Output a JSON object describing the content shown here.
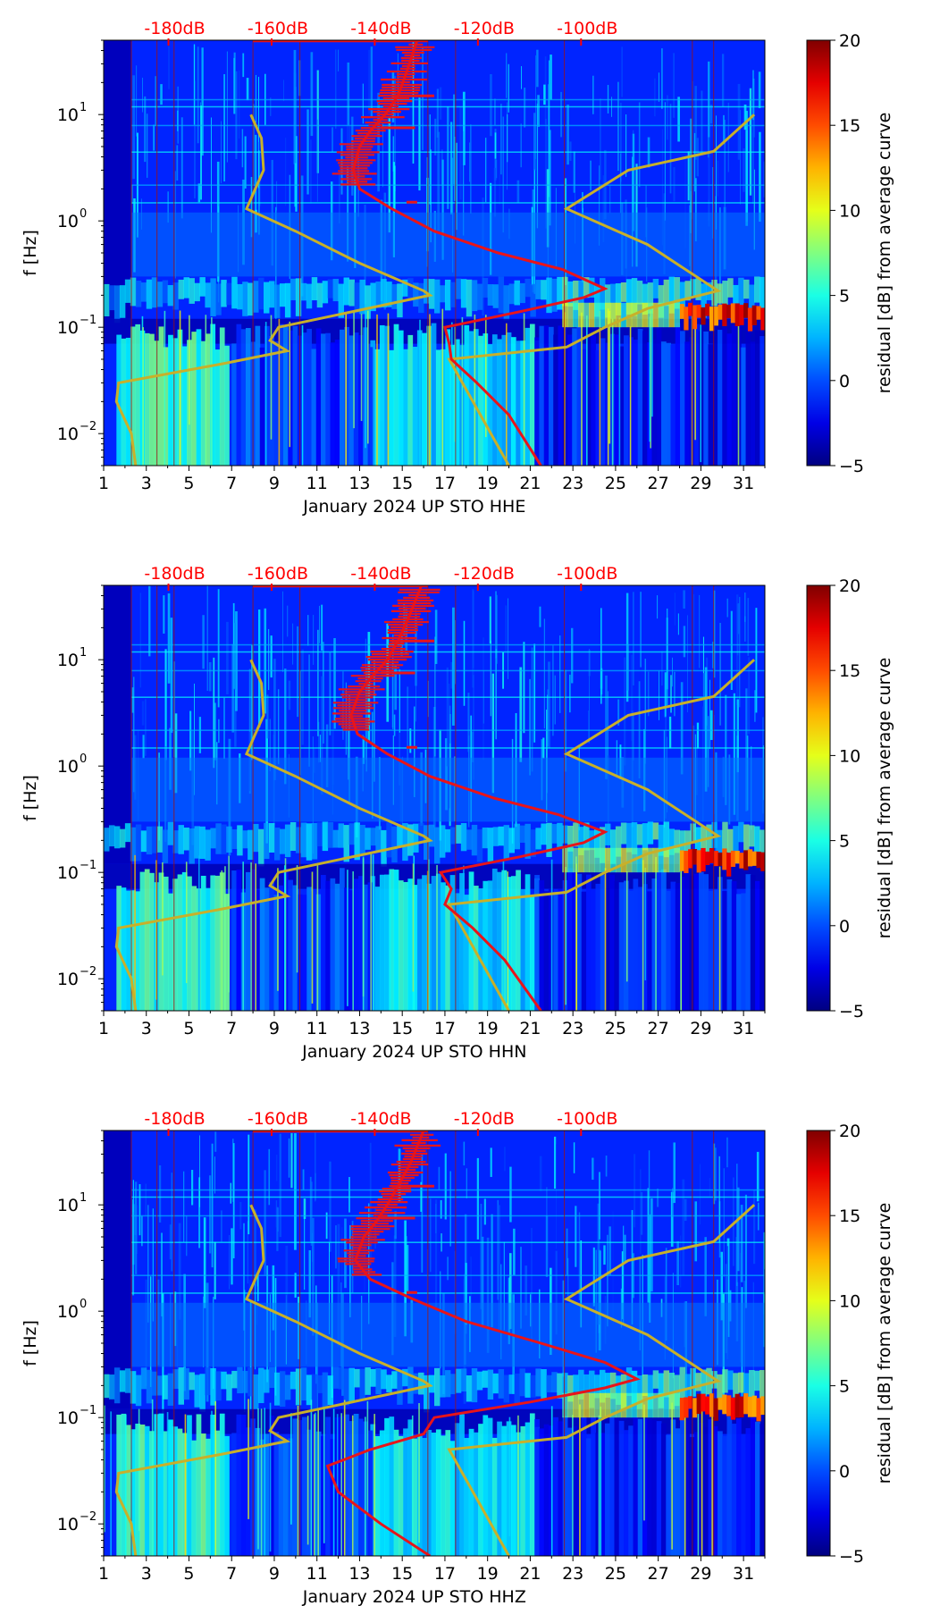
{
  "colors": {
    "db_label": "#ff0000",
    "median_curve": "#e8141a",
    "noise_model": "#c8b02a",
    "reference_line": "#a01010",
    "background_low": "#00008f",
    "colormap": "jet"
  },
  "chart_data": [
    {
      "type": "heatmap",
      "channel": "HHE",
      "xlabel": "January 2024 UP STO  HHE",
      "ylabel": "f [Hz]",
      "x_ticks": [
        "1",
        "3",
        "5",
        "7",
        "9",
        "11",
        "13",
        "15",
        "17",
        "19",
        "21",
        "23",
        "25",
        "27",
        "29",
        "31"
      ],
      "y_ticks": [
        {
          "base": "10",
          "exp": "1",
          "value": 10
        },
        {
          "base": "10",
          "exp": "0",
          "value": 1
        },
        {
          "base": "10",
          "exp": "−1",
          "value": 0.1
        },
        {
          "base": "10",
          "exp": "−2",
          "value": 0.01
        }
      ],
      "xlim": [
        1,
        32
      ],
      "ylim_hz": [
        0.005,
        50
      ],
      "db_axis_labels": [
        "-180dB",
        "-160dB",
        "-140dB",
        "-120dB",
        "-100dB"
      ],
      "db_axis_values": [
        -180,
        -160,
        -140,
        -120,
        -100
      ],
      "colorbar": {
        "label": "residual [dB] from average curve",
        "ticks": [
          "20",
          "15",
          "10",
          "5",
          "0",
          "−5"
        ],
        "vmin": -5,
        "vmax": 20
      },
      "reference_days": [
        2.3,
        3.5,
        4.3,
        8.0,
        10.2,
        16.2,
        17.5,
        22.6,
        28.6,
        29.6
      ],
      "noise_model_high": [
        [
          2.5,
          0.005
        ],
        [
          2.3,
          0.01
        ],
        [
          1.6,
          0.02
        ],
        [
          1.7,
          0.03
        ],
        [
          6.5,
          0.045
        ],
        [
          9.6,
          0.06
        ],
        [
          8.8,
          0.075
        ],
        [
          9.2,
          0.1
        ],
        [
          16.3,
          0.2
        ],
        [
          16.0,
          0.22
        ],
        [
          13.0,
          0.4
        ],
        [
          10.0,
          0.8
        ],
        [
          7.7,
          1.3
        ],
        [
          8.5,
          3.0
        ],
        [
          8.4,
          6.0
        ],
        [
          7.9,
          10
        ]
      ],
      "noise_model_low": [
        [
          20.0,
          0.005
        ],
        [
          17.2,
          0.05
        ],
        [
          22.7,
          0.065
        ],
        [
          24.5,
          0.1
        ],
        [
          26.5,
          0.15
        ],
        [
          29.8,
          0.22
        ],
        [
          26.5,
          0.6
        ],
        [
          22.7,
          1.3
        ],
        [
          25.6,
          3.0
        ],
        [
          29.6,
          4.5
        ],
        [
          31.5,
          10
        ]
      ],
      "median_curve": [
        [
          21.5,
          0.005
        ],
        [
          20.0,
          0.015
        ],
        [
          18.5,
          0.03
        ],
        [
          17.3,
          0.05
        ],
        [
          17.2,
          0.07
        ],
        [
          17.0,
          0.1
        ],
        [
          20.5,
          0.14
        ],
        [
          23.5,
          0.19
        ],
        [
          24.5,
          0.23
        ],
        [
          22.5,
          0.35
        ],
        [
          19.5,
          0.5
        ],
        [
          16.5,
          0.8
        ],
        [
          14.5,
          1.3
        ],
        [
          13.0,
          2.0
        ],
        [
          12.7,
          3.0
        ],
        [
          13.0,
          5.0
        ],
        [
          13.5,
          7.0
        ],
        [
          14.2,
          10.0
        ],
        [
          14.8,
          15.0
        ],
        [
          15.2,
          25.0
        ],
        [
          15.7,
          50.0
        ]
      ],
      "median_curve_days": {
        "min": 12.6,
        "max": 15.9
      },
      "features": {
        "microseism_band_hz": [
          0.12,
          0.3
        ],
        "storm_event_days": [
          28,
          32
        ],
        "storm_event_hz": [
          0.1,
          0.17
        ],
        "quiet_band_hz": [
          0.07,
          0.12
        ]
      }
    },
    {
      "type": "heatmap",
      "channel": "HHN",
      "xlabel": "January 2024 UP STO  HHN",
      "ylabel": "f [Hz]",
      "x_ticks": [
        "1",
        "3",
        "5",
        "7",
        "9",
        "11",
        "13",
        "15",
        "17",
        "19",
        "21",
        "23",
        "25",
        "27",
        "29",
        "31"
      ],
      "y_ticks": [
        {
          "base": "10",
          "exp": "1",
          "value": 10
        },
        {
          "base": "10",
          "exp": "0",
          "value": 1
        },
        {
          "base": "10",
          "exp": "−1",
          "value": 0.1
        },
        {
          "base": "10",
          "exp": "−2",
          "value": 0.01
        }
      ],
      "xlim": [
        1,
        32
      ],
      "ylim_hz": [
        0.005,
        50
      ],
      "db_axis_labels": [
        "-180dB",
        "-160dB",
        "-140dB",
        "-120dB",
        "-100dB"
      ],
      "db_axis_values": [
        -180,
        -160,
        -140,
        -120,
        -100
      ],
      "colorbar": {
        "label": "residual [dB] from average curve",
        "ticks": [
          "20",
          "15",
          "10",
          "5",
          "0",
          "−5"
        ],
        "vmin": -5,
        "vmax": 20
      },
      "reference_days": [
        2.3,
        3.5,
        4.3,
        8.0,
        10.2,
        16.2,
        17.5,
        22.6,
        28.6,
        29.6
      ],
      "noise_model_high": [
        [
          2.5,
          0.005
        ],
        [
          2.3,
          0.01
        ],
        [
          1.6,
          0.02
        ],
        [
          1.7,
          0.03
        ],
        [
          6.5,
          0.045
        ],
        [
          9.6,
          0.06
        ],
        [
          8.8,
          0.075
        ],
        [
          9.2,
          0.1
        ],
        [
          16.3,
          0.2
        ],
        [
          16.0,
          0.22
        ],
        [
          13.0,
          0.4
        ],
        [
          10.0,
          0.8
        ],
        [
          7.7,
          1.3
        ],
        [
          8.5,
          3.0
        ],
        [
          8.4,
          6.0
        ],
        [
          7.9,
          10
        ]
      ],
      "noise_model_low": [
        [
          20.0,
          0.005
        ],
        [
          17.2,
          0.05
        ],
        [
          22.7,
          0.065
        ],
        [
          24.5,
          0.1
        ],
        [
          26.5,
          0.15
        ],
        [
          29.8,
          0.22
        ],
        [
          26.5,
          0.6
        ],
        [
          22.7,
          1.3
        ],
        [
          25.6,
          3.0
        ],
        [
          29.6,
          4.5
        ],
        [
          31.5,
          10
        ]
      ],
      "median_curve": [
        [
          21.5,
          0.005
        ],
        [
          19.8,
          0.015
        ],
        [
          18.3,
          0.03
        ],
        [
          17.0,
          0.05
        ],
        [
          17.3,
          0.07
        ],
        [
          16.8,
          0.1
        ],
        [
          20.5,
          0.14
        ],
        [
          23.5,
          0.19
        ],
        [
          24.5,
          0.24
        ],
        [
          22.3,
          0.35
        ],
        [
          19.3,
          0.5
        ],
        [
          16.3,
          0.8
        ],
        [
          14.3,
          1.3
        ],
        [
          12.9,
          2.0
        ],
        [
          12.6,
          3.0
        ],
        [
          13.0,
          5.0
        ],
        [
          13.6,
          7.0
        ],
        [
          14.3,
          10.0
        ],
        [
          14.8,
          15.0
        ],
        [
          15.3,
          25.0
        ],
        [
          15.9,
          50.0
        ]
      ],
      "median_curve_days": {
        "min": 12.4,
        "max": 16.4
      },
      "features": {
        "microseism_band_hz": [
          0.12,
          0.3
        ],
        "storm_event_days": [
          28,
          32
        ],
        "storm_event_hz": [
          0.1,
          0.17
        ],
        "quiet_band_hz": [
          0.07,
          0.12
        ]
      }
    },
    {
      "type": "heatmap",
      "channel": "HHZ",
      "xlabel": "January 2024 UP STO  HHZ",
      "ylabel": "f [Hz]",
      "x_ticks": [
        "1",
        "3",
        "5",
        "7",
        "9",
        "11",
        "13",
        "15",
        "17",
        "19",
        "21",
        "23",
        "25",
        "27",
        "29",
        "31"
      ],
      "y_ticks": [
        {
          "base": "10",
          "exp": "1",
          "value": 10
        },
        {
          "base": "10",
          "exp": "0",
          "value": 1
        },
        {
          "base": "10",
          "exp": "−1",
          "value": 0.1
        },
        {
          "base": "10",
          "exp": "−2",
          "value": 0.01
        }
      ],
      "xlim": [
        1,
        32
      ],
      "ylim_hz": [
        0.005,
        50
      ],
      "db_axis_labels": [
        "-180dB",
        "-160dB",
        "-140dB",
        "-120dB",
        "-100dB"
      ],
      "db_axis_values": [
        -180,
        -160,
        -140,
        -120,
        -100
      ],
      "colorbar": {
        "label": "residual [dB] from average curve",
        "ticks": [
          "20",
          "15",
          "10",
          "5",
          "0",
          "−5"
        ],
        "vmin": -5,
        "vmax": 20
      },
      "reference_days": [
        2.3,
        3.5,
        4.3,
        8.0,
        10.2,
        16.2,
        17.5,
        22.6,
        28.6,
        29.6
      ],
      "noise_model_high": [
        [
          2.5,
          0.005
        ],
        [
          2.3,
          0.01
        ],
        [
          1.6,
          0.02
        ],
        [
          1.7,
          0.03
        ],
        [
          6.5,
          0.045
        ],
        [
          9.6,
          0.06
        ],
        [
          8.8,
          0.075
        ],
        [
          9.2,
          0.1
        ],
        [
          16.3,
          0.2
        ],
        [
          16.0,
          0.22
        ],
        [
          13.0,
          0.4
        ],
        [
          10.0,
          0.8
        ],
        [
          7.7,
          1.3
        ],
        [
          8.5,
          3.0
        ],
        [
          8.4,
          6.0
        ],
        [
          7.9,
          10
        ]
      ],
      "noise_model_low": [
        [
          20.0,
          0.005
        ],
        [
          17.2,
          0.05
        ],
        [
          22.7,
          0.065
        ],
        [
          24.5,
          0.1
        ],
        [
          26.5,
          0.15
        ],
        [
          29.8,
          0.22
        ],
        [
          26.5,
          0.6
        ],
        [
          22.7,
          1.3
        ],
        [
          25.6,
          3.0
        ],
        [
          29.6,
          4.5
        ],
        [
          31.5,
          10
        ]
      ],
      "median_curve": [
        [
          16.3,
          0.005
        ],
        [
          14.0,
          0.01
        ],
        [
          12.0,
          0.02
        ],
        [
          11.5,
          0.035
        ],
        [
          13.5,
          0.05
        ],
        [
          16.0,
          0.07
        ],
        [
          16.5,
          0.1
        ],
        [
          21.0,
          0.14
        ],
        [
          24.5,
          0.19
        ],
        [
          26.0,
          0.23
        ],
        [
          24.5,
          0.33
        ],
        [
          21.5,
          0.5
        ],
        [
          18.0,
          0.8
        ],
        [
          15.5,
          1.3
        ],
        [
          13.5,
          2.0
        ],
        [
          12.8,
          3.0
        ],
        [
          13.2,
          5.0
        ],
        [
          13.8,
          7.0
        ],
        [
          14.3,
          10.0
        ],
        [
          14.8,
          15.0
        ],
        [
          15.4,
          25.0
        ],
        [
          16.0,
          50.0
        ]
      ],
      "median_curve_days": {
        "min": 12.5,
        "max": 16.4
      },
      "features": {
        "microseism_band_hz": [
          0.12,
          0.3
        ],
        "storm_event_days": [
          28,
          32
        ],
        "storm_event_hz": [
          0.1,
          0.17
        ],
        "quiet_band_hz": [
          0.07,
          0.12
        ]
      }
    }
  ]
}
